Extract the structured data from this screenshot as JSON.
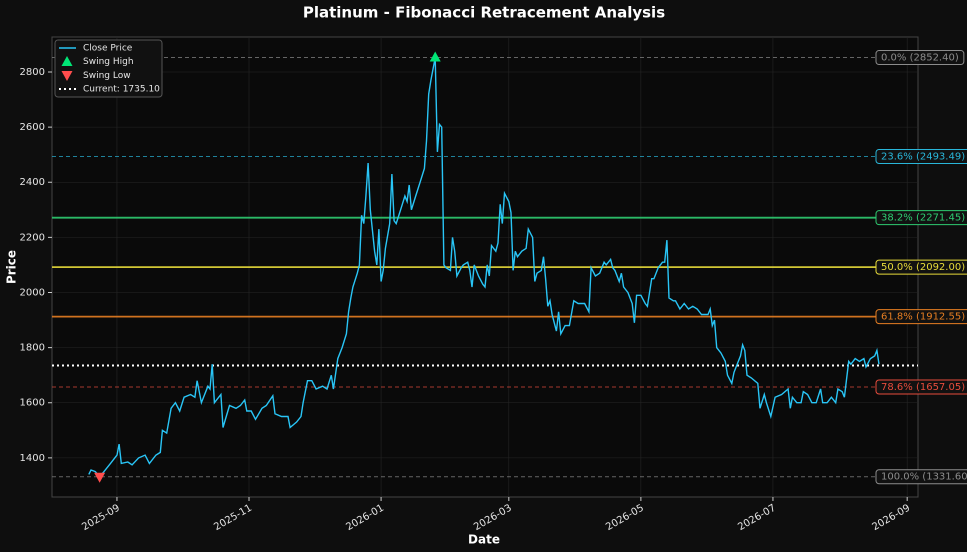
{
  "chart_data": {
    "type": "line",
    "title": "Platinum - Fibonacci Retracement Analysis",
    "xlabel": "Date",
    "ylabel": "Price",
    "xlim": [
      -30,
      370
    ],
    "ylim": [
      1258,
      2927
    ],
    "xticks": [
      {
        "value": 0,
        "label": "2025-09"
      },
      {
        "value": 61,
        "label": "2025-11"
      },
      {
        "value": 122,
        "label": "2026-01"
      },
      {
        "value": 181,
        "label": "2026-03"
      },
      {
        "value": 242,
        "label": "2026-05"
      },
      {
        "value": 303,
        "label": "2026-07"
      },
      {
        "value": 365,
        "label": "2026-09"
      }
    ],
    "yticks": [
      1400,
      1600,
      1800,
      2000,
      2200,
      2400,
      2600,
      2800
    ],
    "grid": true,
    "legend": "upper left",
    "series": [
      {
        "name": "Close Price",
        "color": "#29c5f6",
        "x": [
          -13,
          -12,
          -10,
          -8,
          -6,
          -3,
          0,
          1,
          2,
          5,
          7,
          10,
          13,
          15,
          18,
          20,
          21,
          23,
          25,
          27,
          29,
          31,
          34,
          36,
          37,
          39,
          42,
          43,
          44,
          45,
          48,
          49,
          52,
          55,
          57,
          59,
          60,
          62,
          64,
          67,
          69,
          72,
          73,
          76,
          79,
          80,
          83,
          85,
          86,
          88,
          90,
          92,
          95,
          97,
          99,
          100,
          102,
          104,
          106,
          107,
          108,
          109,
          111,
          112,
          113,
          114,
          115,
          116,
          117,
          119,
          120,
          121,
          122,
          123,
          124,
          126,
          127,
          128,
          129,
          131,
          133,
          134,
          135,
          136,
          138,
          140,
          142,
          143,
          144,
          145,
          147,
          148,
          149,
          150,
          151,
          152,
          154,
          155,
          156,
          157,
          159,
          160,
          162,
          163,
          164,
          165,
          167,
          169,
          170,
          171,
          172,
          173,
          175,
          176,
          177,
          178,
          179,
          181,
          182,
          183,
          184,
          185,
          187,
          189,
          190,
          192,
          193,
          194,
          196,
          197,
          198,
          199,
          200,
          201,
          203,
          204,
          205,
          207,
          209,
          211,
          213,
          216,
          218,
          219,
          221,
          223,
          225,
          226,
          228,
          229,
          230,
          232,
          233,
          234,
          236,
          238,
          239,
          240,
          242,
          244,
          245,
          247,
          248,
          250,
          252,
          253,
          254,
          255,
          257,
          258,
          260,
          262,
          264,
          266,
          268,
          270,
          273,
          274,
          275,
          276,
          277,
          279,
          281,
          282,
          284,
          285,
          287,
          288,
          289,
          290,
          291,
          293,
          296,
          297,
          299,
          300,
          302,
          304,
          307,
          310,
          311,
          312,
          314,
          316,
          317,
          319,
          321,
          323,
          325,
          326,
          328,
          330,
          332,
          333,
          335,
          336,
          338,
          339,
          341,
          343,
          345,
          346,
          348,
          350,
          351,
          352
        ],
        "values": [
          1340,
          1356,
          1350,
          1331.6,
          1350,
          1380,
          1410,
          1450,
          1380,
          1385,
          1375,
          1400,
          1410,
          1380,
          1410,
          1420,
          1500,
          1490,
          1580,
          1600,
          1570,
          1620,
          1630,
          1620,
          1680,
          1600,
          1660,
          1650,
          1740,
          1600,
          1630,
          1510,
          1590,
          1580,
          1590,
          1610,
          1570,
          1570,
          1540,
          1580,
          1590,
          1625,
          1560,
          1550,
          1550,
          1510,
          1530,
          1550,
          1600,
          1680,
          1680,
          1650,
          1660,
          1650,
          1700,
          1650,
          1760,
          1800,
          1850,
          1930,
          1980,
          2020,
          2070,
          2100,
          2280,
          2250,
          2350,
          2470,
          2300,
          2150,
          2100,
          2230,
          2040,
          2080,
          2160,
          2250,
          2430,
          2260,
          2250,
          2300,
          2350,
          2330,
          2390,
          2300,
          2350,
          2400,
          2450,
          2550,
          2720,
          2770,
          2852.4,
          2510,
          2610,
          2600,
          2100,
          2090,
          2080,
          2200,
          2150,
          2060,
          2090,
          2100,
          2110,
          2080,
          2020,
          2100,
          2060,
          2030,
          2020,
          2100,
          2060,
          2170,
          2150,
          2180,
          2320,
          2250,
          2360,
          2330,
          2290,
          2080,
          2150,
          2130,
          2150,
          2160,
          2230,
          2200,
          2040,
          2070,
          2080,
          2130,
          2050,
          1950,
          1970,
          1920,
          1860,
          1930,
          1850,
          1880,
          1880,
          1970,
          1960,
          1960,
          1930,
          2090,
          2060,
          2070,
          2110,
          2100,
          2120,
          2090,
          2080,
          2040,
          2070,
          2020,
          2000,
          1960,
          1890,
          1990,
          1990,
          1960,
          1950,
          2050,
          2050,
          2090,
          2110,
          2110,
          2190,
          1980,
          1970,
          1970,
          1940,
          1960,
          1940,
          1950,
          1940,
          1920,
          1920,
          1940,
          1880,
          1900,
          1800,
          1780,
          1750,
          1700,
          1670,
          1710,
          1750,
          1770,
          1810,
          1790,
          1700,
          1690,
          1670,
          1580,
          1630,
          1600,
          1550,
          1620,
          1630,
          1650,
          1580,
          1620,
          1600,
          1600,
          1640,
          1630,
          1600,
          1600,
          1650,
          1600,
          1600,
          1620,
          1600,
          1650,
          1640,
          1620,
          1750,
          1740,
          1760,
          1750,
          1760,
          1730,
          1760,
          1770,
          1790,
          1740
        ]
      }
    ],
    "swing_high": {
      "name": "Swing High",
      "x": 147,
      "value": 2852.4,
      "color": "#00e676"
    },
    "swing_low": {
      "name": "Swing Low",
      "x": -8,
      "value": 1331.6,
      "color": "#ff4d4d"
    },
    "current": {
      "label": "Current: 1735.10",
      "value": 1735.1,
      "color": "#ffffff"
    },
    "levels": [
      {
        "label": "0.0% (2852.40)",
        "value": 2852.4,
        "color": "#8c8c8c",
        "style": "dashed"
      },
      {
        "label": "23.6% (2493.49)",
        "value": 2493.49,
        "color": "#29b6d9",
        "style": "dashed"
      },
      {
        "label": "38.2% (2271.45)",
        "value": 2271.45,
        "color": "#2ecc71",
        "style": "solid"
      },
      {
        "label": "50.0% (2092.00)",
        "value": 2092.0,
        "color": "#e8dc3a",
        "style": "solid"
      },
      {
        "label": "61.8% (1912.55)",
        "value": 1912.55,
        "color": "#e67e22",
        "style": "solid"
      },
      {
        "label": "78.6% (1657.05)",
        "value": 1657.05,
        "color": "#e74c3c",
        "style": "dashed"
      },
      {
        "label": "100.0% (1331.60)",
        "value": 1331.6,
        "color": "#8c8c8c",
        "style": "dashed"
      }
    ]
  }
}
